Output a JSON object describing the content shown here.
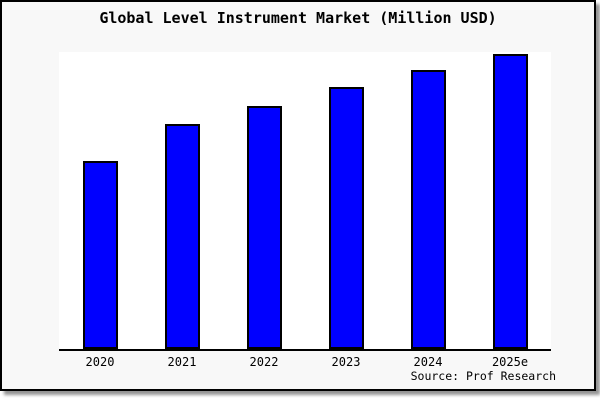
{
  "frame": {
    "background": "#f8f8f8",
    "border_color": "#000000",
    "outer_background": "#ffffff"
  },
  "chart_data": {
    "type": "bar",
    "title": "Global Level Instrument Market (Million USD)",
    "categories": [
      "2020",
      "2021",
      "2022",
      "2023",
      "2024",
      "2025e"
    ],
    "values": [
      63.2,
      75.8,
      81.9,
      88.1,
      93.8,
      99.5
    ],
    "ylim": [
      0,
      100
    ],
    "xlabel": "",
    "ylabel": "",
    "grid": false,
    "legend": false,
    "y_axis_labels_shown": false,
    "bar_color": "#0000ff",
    "bar_border_color": "#000000",
    "plot_background": "#ffffff",
    "axis_line_color": "#000000",
    "note": "No y-axis scale or value labels are shown in the chart; values are relative bar heights (percent of plot height, tallest bar = 99.5)."
  },
  "footer": {
    "source_label": "Source: Prof Research"
  }
}
